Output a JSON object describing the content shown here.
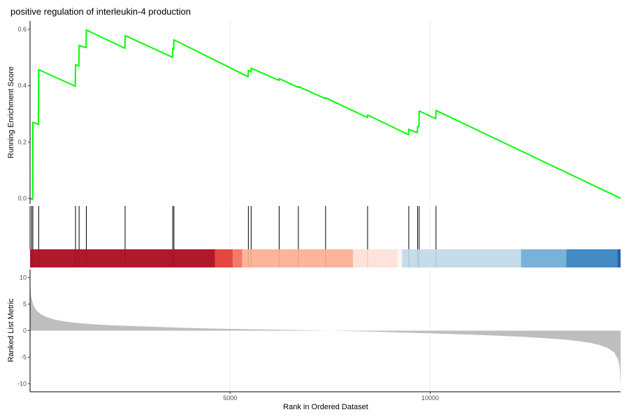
{
  "chart_data": {
    "type": "line",
    "title": "positive regulation of interleukin-4 production",
    "xlabel": "Rank in Ordered Dataset",
    "x_ticks": [
      5000,
      10000
    ],
    "xlim": [
      0,
      14760
    ],
    "grid": "vertical",
    "panels": {
      "running_score": {
        "ylabel": "Running Enrichment Score",
        "ylim": [
          -0.02,
          0.63
        ],
        "y_ticks": [
          0.0,
          0.2,
          0.4,
          0.6
        ],
        "y_tick_labels": [
          "0.0",
          "0.2",
          "0.4",
          "0.6"
        ],
        "line_color": "#00ff00",
        "series": [
          {
            "x": [
              0,
              65,
              70,
              210,
              216,
              1130,
              1136,
              1220,
              1226,
              1400,
              1406,
              2370,
              2376,
              3560,
              3566,
              3590,
              3596,
              5450,
              5456,
              5520,
              5526,
              6220,
              6226,
              6700,
              6706,
              7380,
              7386,
              8430,
              8436,
              9460,
              9466,
              9680,
              9686,
              9720,
              9726,
              10140,
              10146,
              14760
            ],
            "y": [
              0.0,
              -0.005,
              0.27,
              0.262,
              0.457,
              0.398,
              0.475,
              0.47,
              0.543,
              0.535,
              0.598,
              0.533,
              0.578,
              0.501,
              0.532,
              0.53,
              0.563,
              0.432,
              0.455,
              0.449,
              0.462,
              0.419,
              0.425,
              0.394,
              0.397,
              0.354,
              0.357,
              0.287,
              0.296,
              0.226,
              0.245,
              0.233,
              0.255,
              0.255,
              0.31,
              0.283,
              0.312,
              0.0
            ]
          }
        ]
      },
      "hits": {
        "positions": [
          40,
          70,
          216,
          1136,
          1226,
          1406,
          2376,
          3566,
          3596,
          5456,
          5526,
          6226,
          6706,
          7386,
          8436,
          9466,
          9686,
          9726,
          10146
        ]
      },
      "rank_bar": {
        "segments": [
          {
            "from": 0,
            "to": 4620,
            "color": "#b2182b"
          },
          {
            "from": 4620,
            "to": 5070,
            "color": "#e6463f"
          },
          {
            "from": 5070,
            "to": 5300,
            "color": "#f47a65"
          },
          {
            "from": 5300,
            "to": 8070,
            "color": "#fdb49b"
          },
          {
            "from": 8070,
            "to": 9180,
            "color": "#fde3da"
          },
          {
            "from": 9180,
            "to": 9300,
            "color": "#f8f6f5"
          },
          {
            "from": 9300,
            "to": 12270,
            "color": "#c5dce9"
          },
          {
            "from": 12270,
            "to": 13400,
            "color": "#79b2d8"
          },
          {
            "from": 13400,
            "to": 14680,
            "color": "#438bc4"
          },
          {
            "from": 14680,
            "to": 14760,
            "color": "#2166ac"
          }
        ]
      },
      "ranked_metric": {
        "ylabel": "Ranked List Metric",
        "ylim": [
          -11.5,
          11.5
        ],
        "y_ticks": [
          -10,
          -5,
          0,
          5,
          10
        ],
        "y_tick_labels": [
          "-10",
          "-5",
          "0",
          "5",
          "10"
        ],
        "fill_color": "#bebebe",
        "profile": {
          "x": [
            0,
            30,
            80,
            150,
            250,
            400,
            600,
            900,
            1300,
            1800,
            2400,
            3000,
            3800,
            4600,
            5400,
            6200,
            6900,
            7500,
            8100,
            8700,
            9300,
            9900,
            10500,
            11100,
            11700,
            12300,
            12800,
            13300,
            13700,
            14000,
            14250,
            14450,
            14600,
            14700,
            14740,
            14760
          ],
          "y": [
            8.5,
            6.3,
            4.9,
            3.9,
            3.2,
            2.6,
            2.1,
            1.7,
            1.35,
            1.1,
            0.9,
            0.75,
            0.55,
            0.4,
            0.28,
            0.18,
            0.08,
            0.0,
            -0.1,
            -0.22,
            -0.35,
            -0.48,
            -0.62,
            -0.78,
            -0.95,
            -1.15,
            -1.38,
            -1.65,
            -1.95,
            -2.3,
            -2.75,
            -3.3,
            -4.1,
            -5.4,
            -7.0,
            -10.8
          ]
        }
      }
    }
  }
}
